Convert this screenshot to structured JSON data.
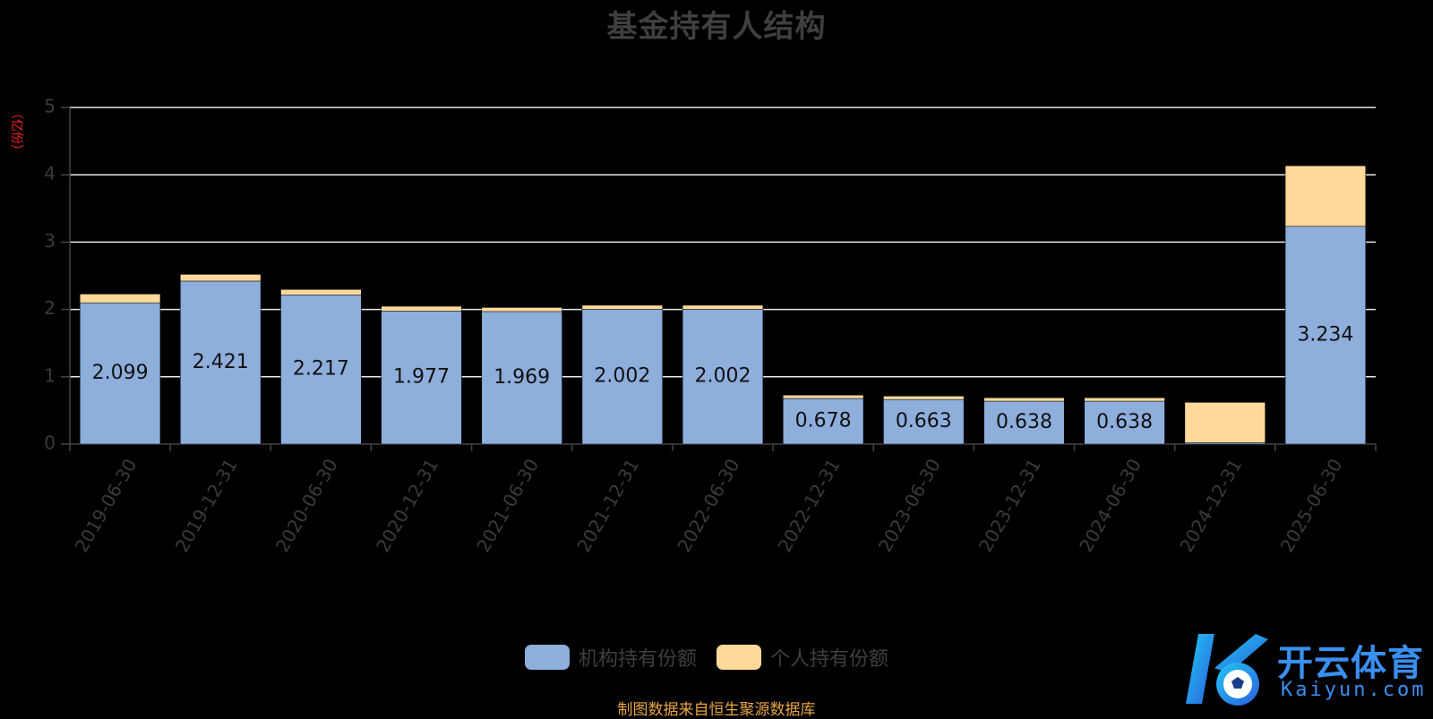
{
  "chart_data": {
    "type": "bar",
    "stacked": true,
    "title": "基金持有人结构",
    "ylabel": "（亿份）",
    "ylim": [
      0,
      5
    ],
    "yticks": [
      0,
      1,
      2,
      3,
      4,
      5
    ],
    "grid": true,
    "legend_position": "bottom",
    "categories": [
      "2019-06-30",
      "2019-12-31",
      "2020-06-30",
      "2020-12-31",
      "2021-06-30",
      "2021-12-31",
      "2022-06-30",
      "2022-12-31",
      "2023-06-30",
      "2023-12-31",
      "2024-06-30",
      "2024-12-31",
      "2025-06-30"
    ],
    "series": [
      {
        "name": "机构持有份额",
        "color": "#8eaedc",
        "values": [
          2.099,
          2.421,
          2.217,
          1.977,
          1.969,
          2.002,
          2.002,
          0.678,
          0.663,
          0.638,
          0.638,
          0.02,
          3.234
        ],
        "labels": [
          "2.099",
          "2.421",
          "2.217",
          "1.977",
          "1.969",
          "2.002",
          "2.002",
          "0.678",
          "0.663",
          "0.638",
          "0.638",
          "",
          "3.234"
        ]
      },
      {
        "name": "个人持有份额",
        "color": "#ffd99a",
        "values": [
          0.13,
          0.1,
          0.08,
          0.07,
          0.06,
          0.06,
          0.06,
          0.05,
          0.05,
          0.05,
          0.05,
          0.6,
          0.9
        ]
      }
    ]
  },
  "footer": {
    "source": "制图数据来自恒生聚源数据库"
  },
  "watermark": {
    "brand": "开云体育",
    "url": "Kaiyun.com",
    "icon": "k-soccer-logo-icon"
  }
}
